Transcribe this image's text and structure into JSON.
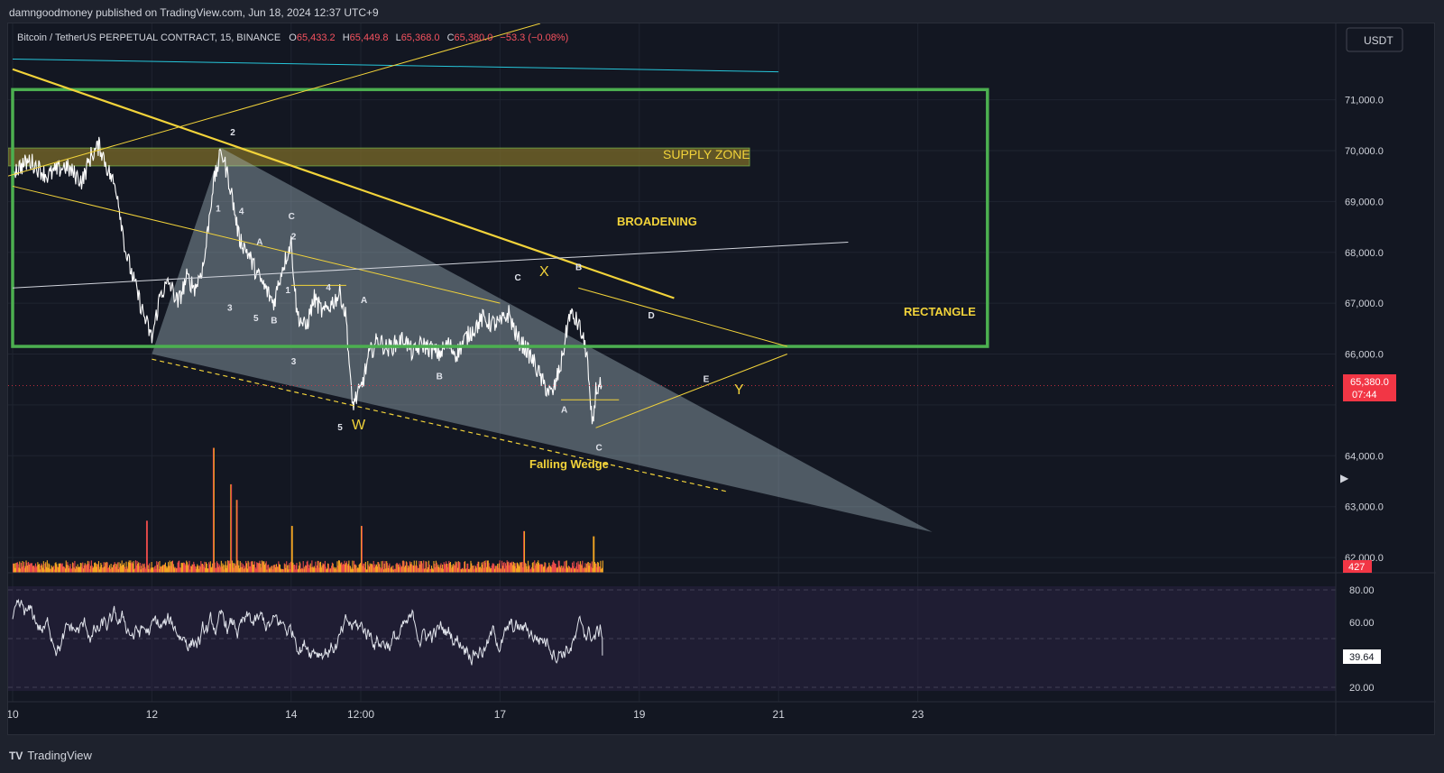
{
  "header": {
    "publisher": "damngoodmoney published on TradingView.com, Jun 18, 2024 12:37 UTC+9"
  },
  "symbol_line": {
    "symbol": "Bitcoin / TetherUS PERPETUAL CONTRACT, 15, BINANCE",
    "o_label": "O",
    "o": "65,433.2",
    "h_label": "H",
    "h": "65,449.8",
    "l_label": "L",
    "l": "65,368.0",
    "c_label": "C",
    "c": "65,380.0",
    "change": "−53.3 (−0.08%)"
  },
  "currency_button": "USDT",
  "price_badge": {
    "price": "65,380.0",
    "countdown": "07:44"
  },
  "volume_badge": "427",
  "rsi_badge": "39.64",
  "footer": {
    "brand": "TradingView",
    "logo": "TV"
  },
  "annotations": {
    "supply_zone": "SUPPLY ZONE",
    "broadening": "BROADENING",
    "rectangle": "RECTANGLE",
    "falling_wedge": "Falling Wedge",
    "W": "W",
    "X": "X",
    "Y": "Y",
    "waves": [
      {
        "t": "2",
        "x": "12/13 03:00",
        "y": 70300
      },
      {
        "t": "1",
        "x": "12/12 22:00",
        "y": 68800
      },
      {
        "t": "4",
        "x": "12/13 06:00",
        "y": 68750
      },
      {
        "t": "A",
        "x": "12/13 12:00",
        "y": 68150
      },
      {
        "t": "C",
        "x": "12/13 23:00",
        "y": 68650
      },
      {
        "t": "2",
        "x": "12/14 00:00",
        "y": 68250
      },
      {
        "t": "1",
        "x": "12/13 22:00",
        "y": 67200
      },
      {
        "t": "3",
        "x": "12/13 02:00",
        "y": 66850
      },
      {
        "t": "5",
        "x": "12/13 11:00",
        "y": 66650
      },
      {
        "t": "B",
        "x": "12/13 17:00",
        "y": 66600
      },
      {
        "t": "3",
        "x": "12/14 00:00",
        "y": 65800
      },
      {
        "t": "4",
        "x": "12/14 12:00",
        "y": 67250
      },
      {
        "t": "A",
        "x": "12/15 00:00",
        "y": 67000
      },
      {
        "t": "5",
        "x": "12/14 16:00",
        "y": 64500
      },
      {
        "t": "B",
        "x": "12/16 02:00",
        "y": 65500
      },
      {
        "t": "C",
        "x": "12/17 05:00",
        "y": 67450
      },
      {
        "t": "B",
        "x": "12/18 02:00",
        "y": 67650
      },
      {
        "t": "A",
        "x": "12/17 21:00",
        "y": 64850
      },
      {
        "t": "C",
        "x": "12/18 09:00",
        "y": 64100
      },
      {
        "t": "D",
        "x": "12/19 03:00",
        "y": 66700
      },
      {
        "t": "E",
        "x": "12/19 22:00",
        "y": 65450
      }
    ]
  },
  "chart_data": {
    "type": "candlestick-line",
    "symbol": "BTCUSDT.P",
    "interval": "15",
    "x_ticks": [
      "10",
      "12",
      "14",
      "12:00",
      "17",
      "19",
      "21",
      "23"
    ],
    "x_tick_days": [
      10,
      12,
      14,
      15,
      17,
      19,
      21,
      23
    ],
    "price_ticks": [
      "71,000.0",
      "70,000.0",
      "69,000.0",
      "68,000.0",
      "67,000.0",
      "66,000.0",
      "64,000.0",
      "63,000.0",
      "62,000.0"
    ],
    "price_tick_values": [
      71000,
      70000,
      69000,
      68000,
      67000,
      66000,
      64000,
      63000,
      62000
    ],
    "price_axis_range": [
      61700,
      72500
    ],
    "price_key_points": [
      [
        "06/10 00:00",
        69600
      ],
      [
        "06/10 06:00",
        69800
      ],
      [
        "06/10 12:00",
        69500
      ],
      [
        "06/10 18:00",
        69700
      ],
      [
        "06/11 00:00",
        69400
      ],
      [
        "06/11 03:00",
        69900
      ],
      [
        "06/11 06:00",
        70100
      ],
      [
        "06/11 09:00",
        69600
      ],
      [
        "06/11 12:00",
        69200
      ],
      [
        "06/11 15:00",
        68000
      ],
      [
        "06/11 18:00",
        67400
      ],
      [
        "06/11 21:00",
        66800
      ],
      [
        "06/12 00:00",
        66300
      ],
      [
        "06/12 03:00",
        67200
      ],
      [
        "06/12 06:00",
        67400
      ],
      [
        "06/12 09:00",
        67000
      ],
      [
        "06/12 12:00",
        67500
      ],
      [
        "06/12 15:00",
        67300
      ],
      [
        "06/12 18:00",
        67800
      ],
      [
        "06/12 21:00",
        69300
      ],
      [
        "06/13 00:00",
        70000
      ],
      [
        "06/13 03:00",
        69300
      ],
      [
        "06/13 06:00",
        68300
      ],
      [
        "06/13 09:00",
        68000
      ],
      [
        "06/13 12:00",
        67600
      ],
      [
        "06/13 15:00",
        67300
      ],
      [
        "06/13 18:00",
        67000
      ],
      [
        "06/13 21:00",
        67700
      ],
      [
        "06/14 00:00",
        68200
      ],
      [
        "06/14 02:00",
        66800
      ],
      [
        "06/14 05:00",
        66500
      ],
      [
        "06/14 08:00",
        67100
      ],
      [
        "06/14 11:00",
        66800
      ],
      [
        "06/14 14:00",
        67000
      ],
      [
        "06/14 17:00",
        67200
      ],
      [
        "06/14 19:00",
        66700
      ],
      [
        "06/14 21:00",
        65000
      ],
      [
        "06/15 00:00",
        65300
      ],
      [
        "06/15 03:00",
        66000
      ],
      [
        "06/15 06:00",
        66300
      ],
      [
        "06/15 09:00",
        66100
      ],
      [
        "06/15 12:00",
        66200
      ],
      [
        "06/15 15:00",
        66300
      ],
      [
        "06/15 18:00",
        66000
      ],
      [
        "06/15 21:00",
        66200
      ],
      [
        "06/16 00:00",
        66100
      ],
      [
        "06/16 03:00",
        66000
      ],
      [
        "06/16 06:00",
        66200
      ],
      [
        "06/16 09:00",
        66000
      ],
      [
        "06/16 12:00",
        66300
      ],
      [
        "06/16 15:00",
        66500
      ],
      [
        "06/16 18:00",
        66700
      ],
      [
        "06/16 21:00",
        66600
      ],
      [
        "06/17 00:00",
        66600
      ],
      [
        "06/17 03:00",
        66800
      ],
      [
        "06/17 06:00",
        66300
      ],
      [
        "06/17 09:00",
        66100
      ],
      [
        "06/17 12:00",
        65800
      ],
      [
        "06/17 15:00",
        65400
      ],
      [
        "06/17 18:00",
        65200
      ],
      [
        "06/17 21:00",
        65800
      ],
      [
        "06/18 00:00",
        66800
      ],
      [
        "06/18 03:00",
        66600
      ],
      [
        "06/18 06:00",
        66000
      ],
      [
        "06/18 07:00",
        65000
      ],
      [
        "06/18 08:00",
        64600
      ],
      [
        "06/18 09:00",
        65300
      ],
      [
        "06/18 11:00",
        65380
      ]
    ],
    "volume_peak_values": [
      [
        "06/12 21:00",
        2400
      ],
      [
        "06/13 03:00",
        1700
      ],
      [
        "06/13 05:00",
        1400
      ],
      [
        "06/11 22:00",
        1000
      ],
      [
        "06/14 00:00",
        900
      ],
      [
        "06/15 00:00",
        900
      ],
      [
        "06/17 08:00",
        800
      ],
      [
        "06/18 08:00",
        700
      ]
    ],
    "rsi": {
      "levels": [
        80,
        50,
        20
      ],
      "ticks": [
        "80.00",
        "60.00",
        "20.00"
      ],
      "tick_values": [
        80,
        60,
        20
      ],
      "axis_range": [
        17.8,
        82.2
      ],
      "current": 39.64
    },
    "drawings": {
      "supply_zone_band": [
        69700,
        70050
      ],
      "rectangle": {
        "x_from": "06/10 00:00",
        "x_to": "06/24 00:00",
        "y_top": 71200,
        "y_bottom": 66150
      },
      "falling_wedge_vertices": [
        [
          "06/12 00:00",
          66000
        ],
        [
          "06/13 00:00",
          70050
        ],
        [
          "06/23 05:00",
          62500
        ]
      ],
      "upper_trendline": [
        [
          "06/10 00:00",
          69300
        ],
        [
          "06/17 00:00",
          67000
        ]
      ],
      "lower_dashed": [
        [
          "06/12 00:00",
          65900
        ],
        [
          "06/20 06:00",
          63300
        ]
      ],
      "broadening_upper": [
        [
          "06/10 00:00",
          71600
        ],
        [
          "06/19 12:00",
          67100
        ]
      ],
      "white_line": [
        [
          "06/10 00:00",
          67300
        ],
        [
          "06/22 00:00",
          68200
        ]
      ],
      "cyan_line": [
        [
          "06/10 00:00",
          71800
        ],
        [
          "06/21 00:00",
          71550
        ]
      ]
    }
  }
}
